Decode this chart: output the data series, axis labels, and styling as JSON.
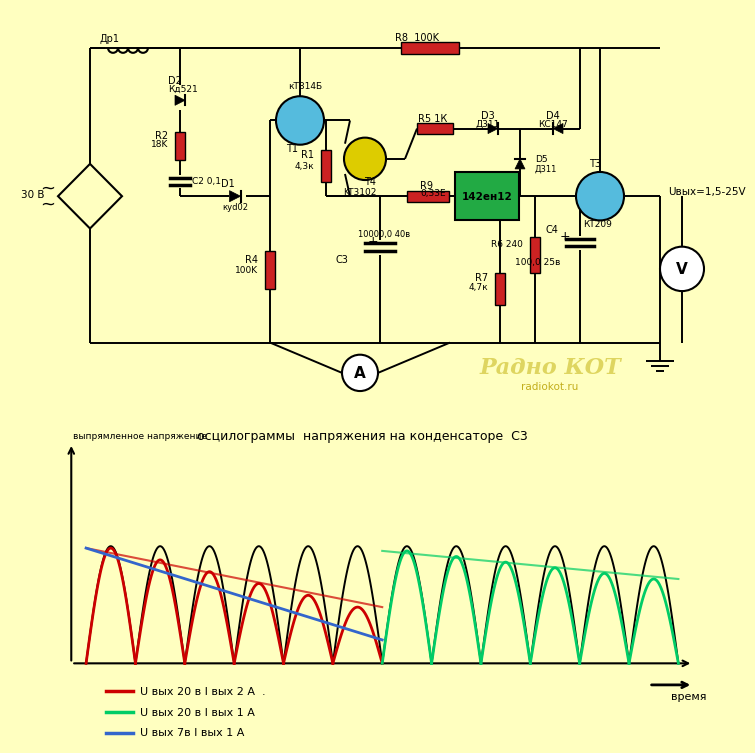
{
  "bg_color": "#FFFFC0",
  "circuit_bg": "#FFFFC0",
  "osc_bg": "#FFFFC0",
  "title_osc": "осцилограммы  напряжения на конденсаторе  C3",
  "ylabel_osc": "выпрямленное напряжение",
  "xlabel_osc": "время",
  "legend_entries": [
    {
      "label": "U вых 20 в I вых 2 А  .",
      "color": "#CC0000"
    },
    {
      "label": "U вых 20 в I вых 1 А",
      "color": "#00CC66"
    },
    {
      "label": "U вых 7в I вых 1 А",
      "color": "#3366CC"
    }
  ],
  "radiokot_text1": "Радно КОТ",
  "radiokot_url": "radiokot.ru",
  "Uvyx_label": "Uвых=1,5-25V"
}
